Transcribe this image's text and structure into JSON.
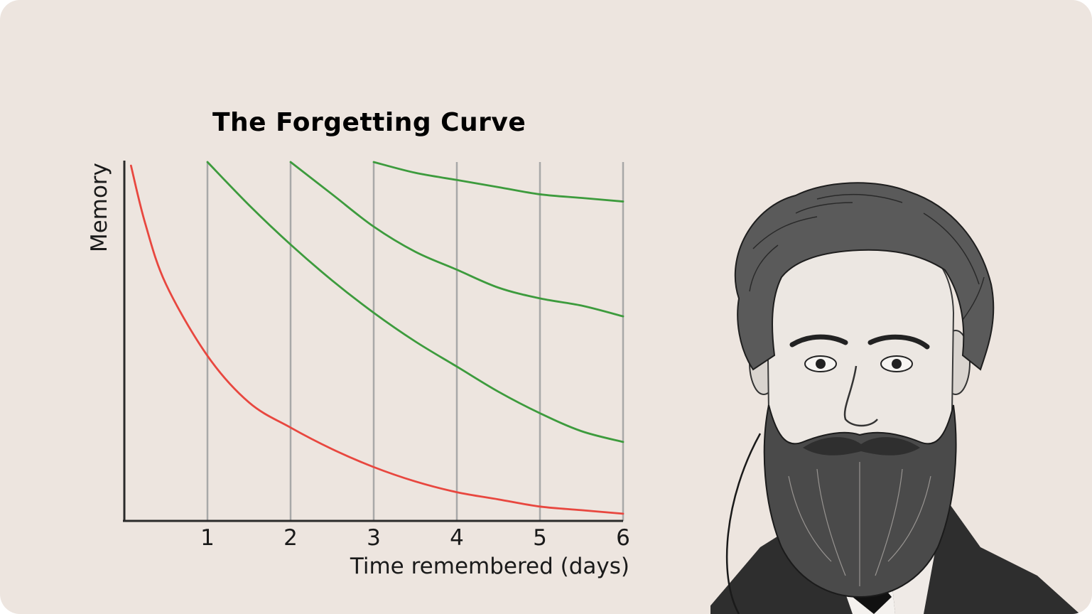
{
  "chart_data": {
    "type": "line",
    "title": "The Forgetting Curve",
    "xlabel": "Time remembered (days)",
    "ylabel": "Memory",
    "xlim": [
      0,
      6
    ],
    "ylim": [
      0,
      100
    ],
    "x_ticks": [
      "1",
      "2",
      "3",
      "4",
      "5",
      "6"
    ],
    "grid": "vertical lines at each day",
    "y_ticks_shown": false,
    "series": [
      {
        "color": "#e8473f",
        "x": [
          0.08,
          0.25,
          0.5,
          1,
          1.5,
          2,
          2.5,
          3,
          3.5,
          4,
          4.5,
          5,
          5.5,
          6
        ],
        "y": [
          99,
          83,
          66,
          46,
          33,
          26,
          20,
          15,
          11,
          8,
          6,
          4,
          3,
          2
        ]
      },
      {
        "color": "#3d9b3d",
        "x": [
          1,
          1.5,
          2,
          2.5,
          3,
          3.5,
          4,
          4.5,
          5,
          5.5,
          6
        ],
        "y": [
          100,
          88,
          77,
          67,
          58,
          50,
          43,
          36,
          30,
          25,
          22
        ]
      },
      {
        "color": "#3d9b3d",
        "x": [
          2,
          2.5,
          3,
          3.5,
          4,
          4.5,
          5,
          5.5,
          6
        ],
        "y": [
          100,
          91,
          82,
          75,
          70,
          65,
          62,
          60,
          57
        ]
      },
      {
        "color": "#3d9b3d",
        "x": [
          3,
          3.5,
          4,
          4.5,
          5,
          5.5,
          6
        ],
        "y": [
          100,
          97,
          95,
          93,
          91,
          90,
          89
        ]
      }
    ]
  },
  "portrait": {
    "subject": "engraved portrait of a bearded man"
  },
  "colors": {
    "background": "#ede5df",
    "grid": "#a8a8a8",
    "axis": "#2a2a2a"
  }
}
